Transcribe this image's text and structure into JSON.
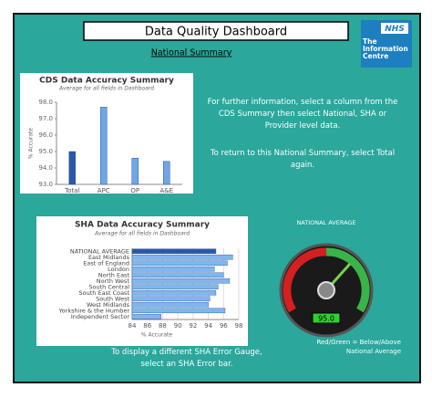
{
  "header": {
    "title": "Data Quality Dashboard",
    "subtitle": "National Summary"
  },
  "logo": {
    "badge": "NHS",
    "name": "The Information Centre"
  },
  "info_text": [
    "For further information, select a column from the CDS Summary then select National, SHA or Provider level data.",
    "To return to this National Summary, select Total again."
  ],
  "sha_hint": "To display a different SHA Error Gauge, select an SHA Error bar.",
  "gauge": {
    "title": "NATIONAL AVERAGE",
    "value": 95.0,
    "value_label": "95.0",
    "legend": "Red/Green = Below/Above National Average"
  },
  "chart_data": [
    {
      "type": "bar",
      "title": "CDS Data Accuracy Summary",
      "subtitle": "Average for all fields in Dashboard",
      "ylabel": "% Accurate",
      "categories": [
        "Total",
        "APC",
        "OP",
        "A&E"
      ],
      "values": [
        95.0,
        97.7,
        94.6,
        94.4
      ],
      "colors": [
        "#2a58a6",
        "#6fa6e6",
        "#6fa6e6",
        "#6fa6e6"
      ],
      "ylim": [
        93,
        98
      ],
      "yticks": [
        {
          "value": 93,
          "label": "93.0"
        },
        {
          "value": 94,
          "label": "94.0"
        },
        {
          "value": 95,
          "label": "95.0"
        },
        {
          "value": 96,
          "label": "96.0"
        },
        {
          "value": 97,
          "label": "97.0"
        },
        {
          "value": 98,
          "label": "98.0"
        }
      ]
    },
    {
      "type": "hbar",
      "title": "SHA Data Accuracy Summary",
      "subtitle": "Average for all fields in Dashboard",
      "xlabel": "% Accurate",
      "categories": [
        "NATIONAL AVERAGE",
        "East Midlands",
        "East of England",
        "London",
        "North East",
        "North West",
        "South Central",
        "South East Coast",
        "South West",
        "West Midlands",
        "Yorkshire & the Humber",
        "Independent Sector"
      ],
      "values": [
        95.0,
        97.2,
        96.5,
        94.8,
        96.0,
        96.8,
        95.3,
        95.0,
        94.2,
        94.0,
        96.2,
        87.8
      ],
      "colors": [
        "#2a58a6",
        "#7fb6ec",
        "#7fb6ec",
        "#7fb6ec",
        "#7fb6ec",
        "#7fb6ec",
        "#7fb6ec",
        "#7fb6ec",
        "#7fb6ec",
        "#7fb6ec",
        "#7fb6ec",
        "#7fb6ec"
      ],
      "xlim": [
        84,
        98
      ],
      "xticks": [
        84,
        86,
        88,
        90,
        92,
        94,
        96,
        98
      ],
      "grid": true
    }
  ]
}
